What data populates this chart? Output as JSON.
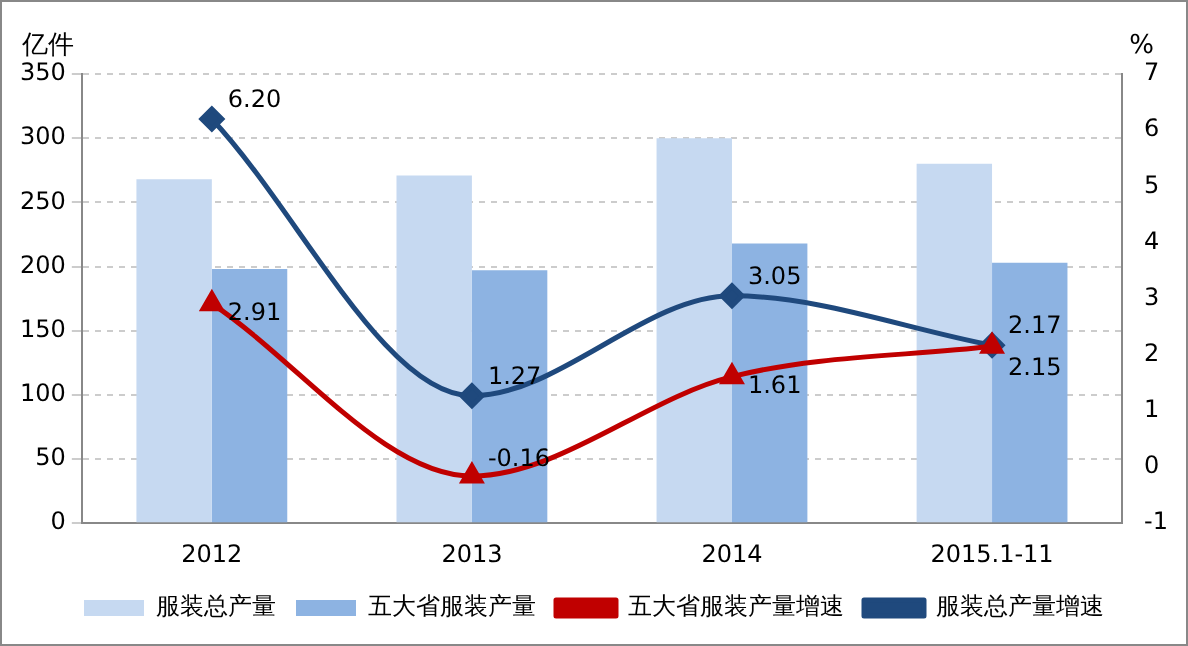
{
  "chart_data": {
    "type": "bar",
    "ylabel": "亿件",
    "y2label": "%",
    "categories": [
      "2012",
      "2013",
      "2014",
      "2015.1-11"
    ],
    "series": [
      {
        "name": "服装总产量",
        "color": "#c6d9f1",
        "values": [
          268,
          271,
          300,
          280
        ]
      },
      {
        "name": "五大省服装产量",
        "color": "#8db3e2",
        "values": [
          198,
          197,
          218,
          203
        ]
      },
      {
        "name": "五大省服装产量增速",
        "type": "line",
        "axis": "y2",
        "color": "#c00000",
        "marker": "triangle",
        "values": [
          2.91,
          -0.16,
          1.61,
          2.15
        ],
        "value_labels": [
          "2.91",
          "-0.16",
          "1.61",
          "2.15"
        ]
      },
      {
        "name": "服装总产量增速",
        "type": "line",
        "axis": "y2",
        "color": "#1f497d",
        "marker": "diamond",
        "values": [
          6.2,
          1.27,
          3.05,
          2.17
        ],
        "value_labels": [
          "6.20",
          "1.27",
          "3.05",
          "2.17"
        ]
      }
    ],
    "ylim": [
      0,
      350
    ],
    "yticks": [
      0,
      50,
      100,
      150,
      200,
      250,
      300,
      350
    ],
    "y2lim": [
      -1,
      7
    ],
    "y2ticks": [
      -1,
      0,
      1,
      2,
      3,
      4,
      5,
      6,
      7
    ],
    "grid": "y",
    "legend": "bottom"
  }
}
